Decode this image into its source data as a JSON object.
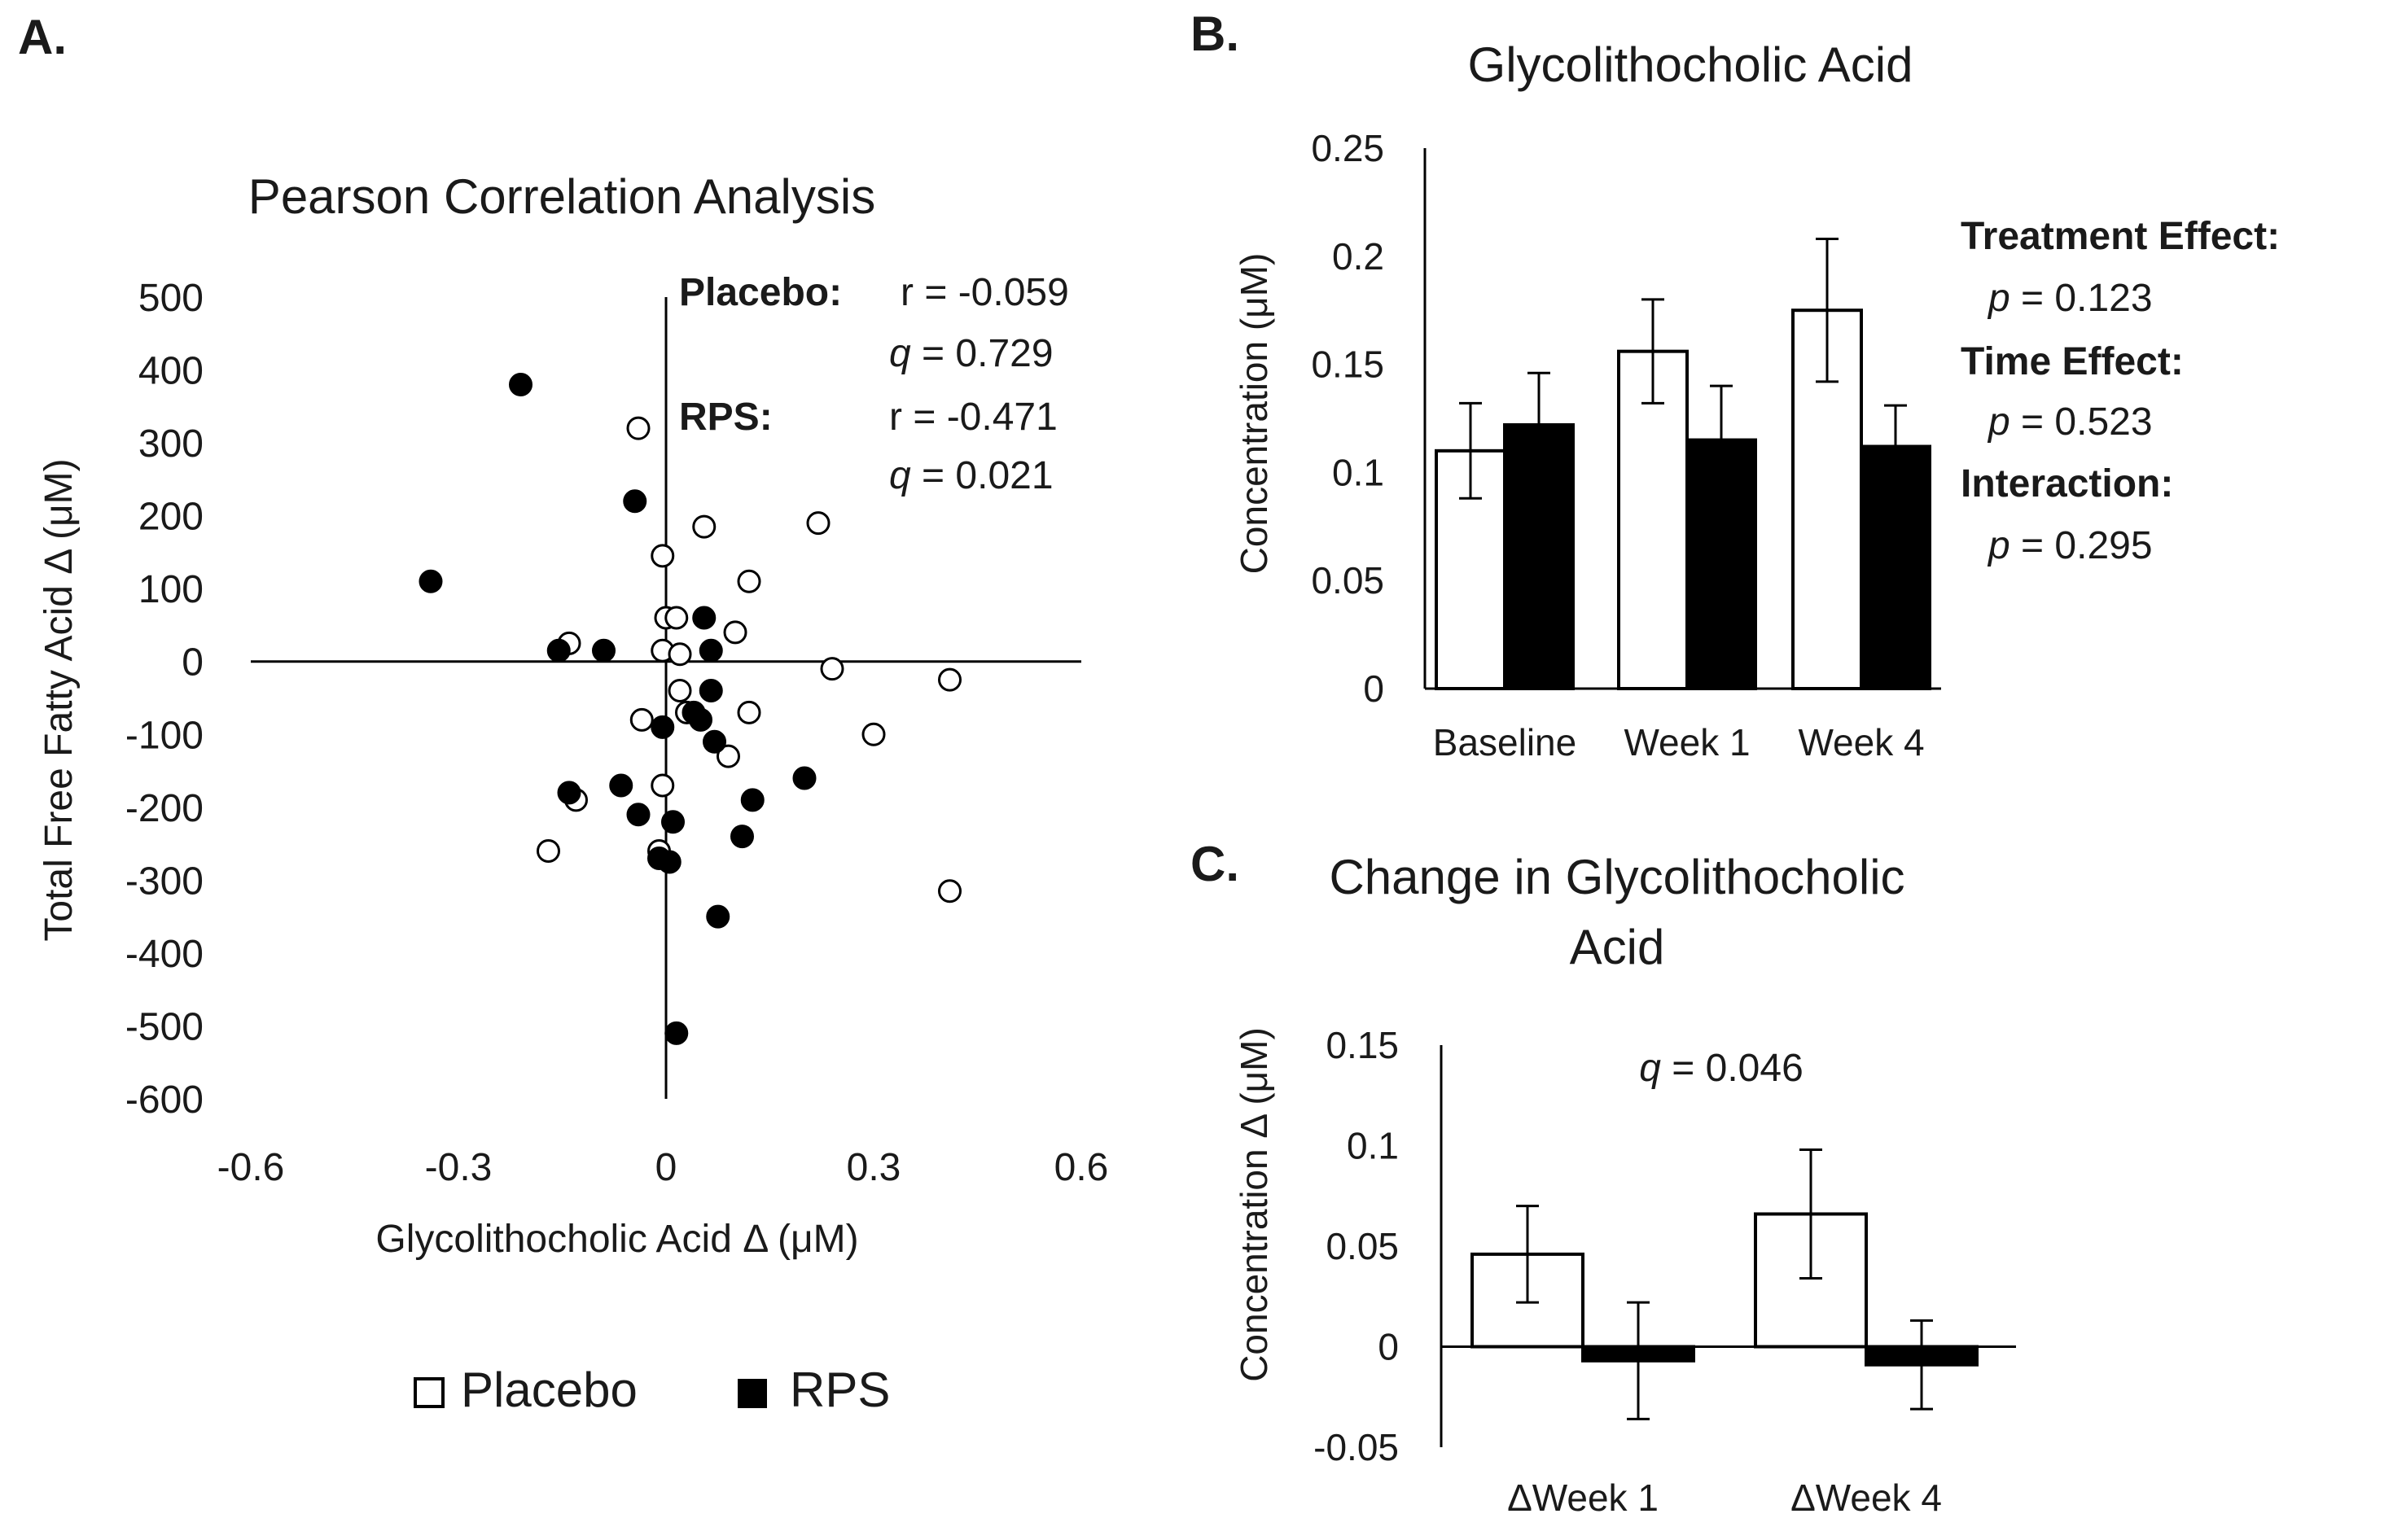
{
  "panels": {
    "a": "A.",
    "b": "B.",
    "c": "C."
  },
  "colors": {
    "placebo_fill": "#ffffff",
    "rps_fill": "#000000",
    "stroke": "#000000"
  },
  "chart_data": [
    {
      "id": "a",
      "type": "scatter",
      "title": "Pearson Correlation Analysis",
      "xlabel": "Glycolithocholic Acid Δ (μM)",
      "ylabel": "Total Free Fatty Acid Δ (μM)",
      "xlim": [
        -0.6,
        0.6
      ],
      "ylim": [
        -600,
        500
      ],
      "xticks": [
        {
          "v": -0.6,
          "label": "-0.6"
        },
        {
          "v": -0.3,
          "label": "-0.3"
        },
        {
          "v": 0,
          "label": "0"
        },
        {
          "v": 0.3,
          "label": "0.3"
        },
        {
          "v": 0.6,
          "label": "0.6"
        }
      ],
      "yticks": [
        {
          "v": 500,
          "label": "500"
        },
        {
          "v": 400,
          "label": "400"
        },
        {
          "v": 300,
          "label": "300"
        },
        {
          "v": 200,
          "label": "200"
        },
        {
          "v": 100,
          "label": "100"
        },
        {
          "v": 0,
          "label": "0"
        },
        {
          "v": -100,
          "label": "-100"
        },
        {
          "v": -200,
          "label": "-200"
        },
        {
          "v": -300,
          "label": "-300"
        },
        {
          "v": -400,
          "label": "-400"
        },
        {
          "v": -500,
          "label": "-500"
        },
        {
          "v": -600,
          "label": "-600"
        }
      ],
      "legend": {
        "placement": "bottom",
        "items": [
          {
            "label": "Placebo",
            "series": "placebo"
          },
          {
            "label": "RPS",
            "series": "rps"
          }
        ]
      },
      "annotations": {
        "placebo_label": "Placebo:",
        "placebo_r": "r = -0.059",
        "placebo_q_sym": "q",
        "placebo_q": " = 0.729",
        "rps_label": "RPS:",
        "rps_r": "r = -0.471",
        "rps_q_sym": "q",
        "rps_q": " = 0.021"
      },
      "series": [
        {
          "name": "placebo",
          "points": [
            [
              -0.04,
              320
            ],
            [
              0.055,
              185
            ],
            [
              0.22,
              190
            ],
            [
              -0.005,
              145
            ],
            [
              0.12,
              110
            ],
            [
              0.0,
              60
            ],
            [
              0.015,
              60
            ],
            [
              0.1,
              40
            ],
            [
              -0.14,
              25
            ],
            [
              -0.005,
              15
            ],
            [
              0.02,
              10
            ],
            [
              0.24,
              -10
            ],
            [
              0.41,
              -25
            ],
            [
              0.02,
              -40
            ],
            [
              0.12,
              -70
            ],
            [
              0.03,
              -70
            ],
            [
              -0.035,
              -80
            ],
            [
              0.09,
              -130
            ],
            [
              0.3,
              -100
            ],
            [
              -0.005,
              -170
            ],
            [
              -0.13,
              -190
            ],
            [
              -0.17,
              -260
            ],
            [
              -0.01,
              -260
            ],
            [
              0.41,
              -315
            ]
          ]
        },
        {
          "name": "rps",
          "points": [
            [
              -0.21,
              380
            ],
            [
              -0.045,
              220
            ],
            [
              -0.34,
              110
            ],
            [
              0.055,
              60
            ],
            [
              -0.155,
              15
            ],
            [
              -0.09,
              15
            ],
            [
              0.065,
              15
            ],
            [
              0.065,
              -40
            ],
            [
              0.05,
              -80
            ],
            [
              -0.005,
              -90
            ],
            [
              0.04,
              -70
            ],
            [
              0.07,
              -110
            ],
            [
              -0.065,
              -170
            ],
            [
              0.2,
              -160
            ],
            [
              -0.14,
              -180
            ],
            [
              0.125,
              -190
            ],
            [
              -0.04,
              -210
            ],
            [
              0.01,
              -220
            ],
            [
              0.11,
              -240
            ],
            [
              -0.01,
              -270
            ],
            [
              0.005,
              -275
            ],
            [
              0.075,
              -350
            ],
            [
              0.015,
              -510
            ]
          ]
        }
      ]
    },
    {
      "id": "b",
      "type": "bar",
      "title": "Glycolithocholic Acid",
      "ylabel": "Concentration (μM)",
      "ylim": [
        0,
        0.25
      ],
      "yticks": [
        {
          "v": 0.25,
          "label": "0.25"
        },
        {
          "v": 0.2,
          "label": "0.2"
        },
        {
          "v": 0.15,
          "label": "0.15"
        },
        {
          "v": 0.1,
          "label": "0.1"
        },
        {
          "v": 0.05,
          "label": "0.05"
        },
        {
          "v": 0,
          "label": "0"
        }
      ],
      "categories": [
        "Baseline",
        "Week 1",
        "Week 4"
      ],
      "series": [
        {
          "name": "Placebo",
          "values": [
            0.11,
            0.156,
            0.175
          ],
          "errors": [
            0.022,
            0.024,
            0.033
          ]
        },
        {
          "name": "RPS",
          "values": [
            0.122,
            0.115,
            0.112
          ],
          "errors": [
            0.024,
            0.025,
            0.019
          ]
        }
      ],
      "stats": [
        {
          "label": "Treatment Effect:",
          "p_sym": "p",
          "value": " = 0.123"
        },
        {
          "label": "Time Effect:",
          "p_sym": "p",
          "value": " = 0.523"
        },
        {
          "label": "Interaction:",
          "p_sym": "p",
          "value": " = 0.295"
        }
      ]
    },
    {
      "id": "c",
      "type": "bar",
      "title_line1": "Change in Glycolithocholic",
      "title_line2": "Acid",
      "ylabel": "Concentration Δ (μM)",
      "ylim": [
        -0.05,
        0.15
      ],
      "yticks": [
        {
          "v": 0.15,
          "label": "0.15"
        },
        {
          "v": 0.1,
          "label": "0.1"
        },
        {
          "v": 0.05,
          "label": "0.05"
        },
        {
          "v": 0,
          "label": "0"
        },
        {
          "v": -0.05,
          "label": "-0.05"
        }
      ],
      "categories": [
        "ΔWeek 1",
        "ΔWeek 4"
      ],
      "series": [
        {
          "name": "Placebo",
          "values": [
            0.046,
            0.066
          ],
          "errors": [
            0.024,
            0.032
          ]
        },
        {
          "name": "RPS",
          "values": [
            -0.007,
            -0.009
          ],
          "errors": [
            0.029,
            0.022
          ]
        }
      ],
      "q_sym": "q",
      "q_value": " = 0.046"
    }
  ]
}
